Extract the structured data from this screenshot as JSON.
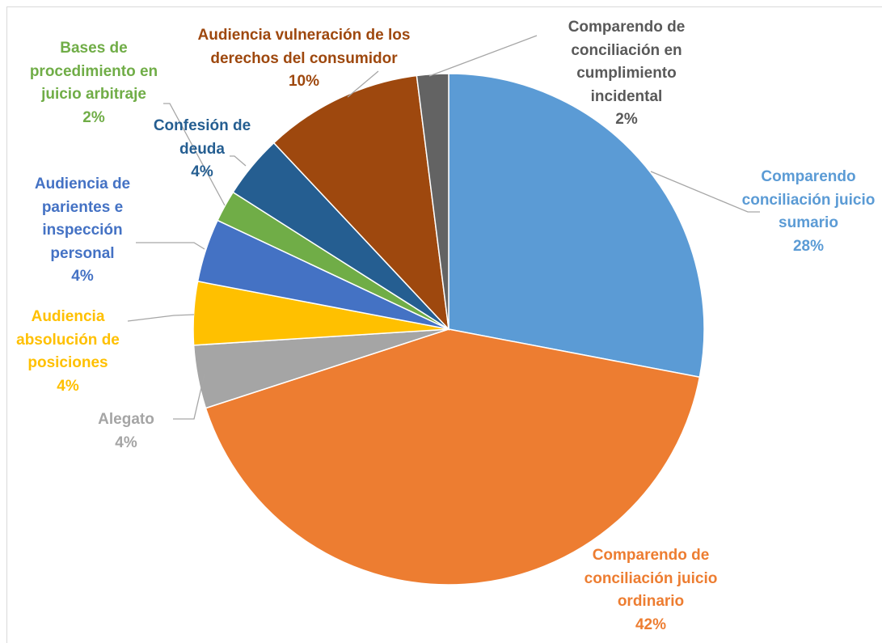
{
  "chart_data": {
    "type": "pie",
    "categories": [
      "Comparendo conciliación juicio sumario",
      "Comparendo de conciliación juicio ordinario",
      "Alegato",
      "Audiencia absolución de posiciones",
      "Audiencia de parientes e inspección personal",
      "Bases de procedimiento en juicio arbitraje",
      "Confesión de deuda",
      "Audiencia vulneración de los derechos del consumidor",
      "Comparendo de conciliación en cumplimiento incidental"
    ],
    "values": [
      28,
      42,
      4,
      4,
      4,
      2,
      4,
      10,
      2
    ],
    "value_labels": [
      "28%",
      "42%",
      "4%",
      "4%",
      "4%",
      "2%",
      "4%",
      "10%",
      "2%"
    ],
    "colors": [
      "#5b9bd5",
      "#ed7d31",
      "#a5a5a5",
      "#ffc000",
      "#4472c4",
      "#70ad47",
      "#255e91",
      "#9e480e",
      "#636363"
    ]
  }
}
